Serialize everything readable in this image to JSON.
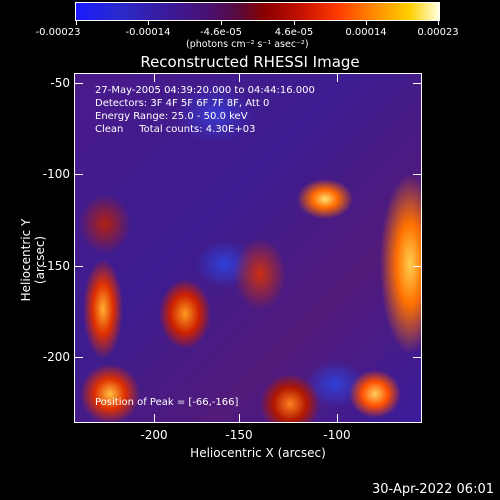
{
  "colorbar": {
    "labels": [
      "-0.00023",
      "-0.00014",
      "-4.6e-05",
      "4.6e-05",
      "0.00014",
      "0.00023"
    ],
    "unit": "(photons cm⁻² s⁻¹ asec⁻²)"
  },
  "title": "Reconstructed RHESSI Image",
  "info": {
    "time": "27-May-2005 04:39:20.000 to 04:44:16.000",
    "detectors": "Detectors: 3F 4F 5F 6F 7F 8F, Att 0",
    "energy": "Energy Range: 25.0 - 50.0 keV",
    "clean": "Clean     Total counts: 4.30E+03",
    "peak": "Position of Peak = [-66,-166]"
  },
  "y_axis": {
    "title": "Heliocentric Y (arcsec)",
    "ticks": [
      "-50",
      "-100",
      "-150",
      "-200"
    ]
  },
  "x_axis": {
    "title": "Heliocentric X (arcsec)",
    "ticks": [
      "-200",
      "-150",
      "-100"
    ]
  },
  "timestamp": "30-Apr-2022 06:01"
}
